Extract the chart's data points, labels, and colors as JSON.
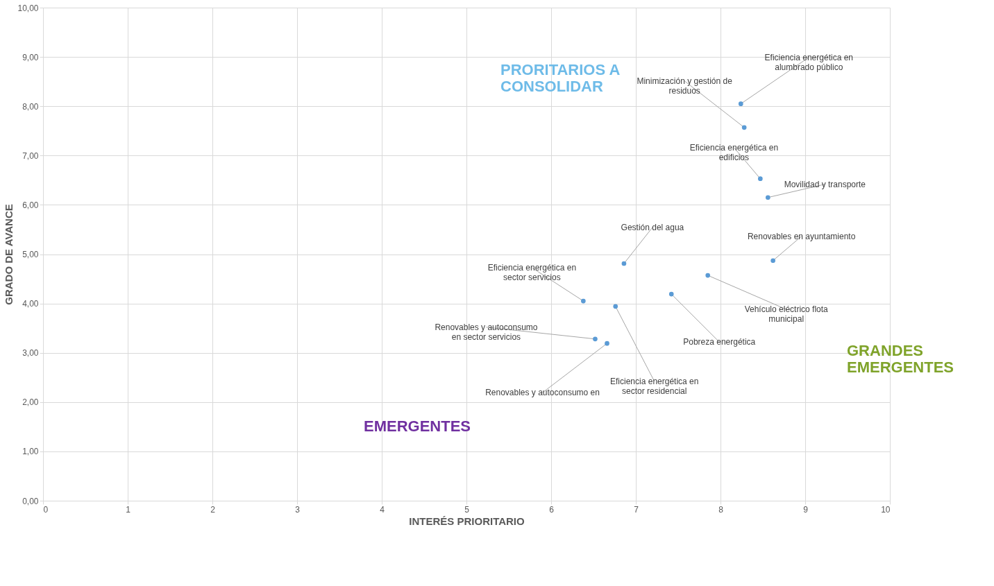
{
  "chart_data": {
    "type": "scatter",
    "xlabel": "INTERÉS PRIORITARIO",
    "ylabel": "GRADO DE AVANCE",
    "xlim": [
      0,
      10
    ],
    "ylim": [
      0,
      10
    ],
    "xticks": [
      0,
      1,
      2,
      3,
      4,
      5,
      6,
      7,
      8,
      9,
      10
    ],
    "yticks": [
      {
        "value": 0,
        "label": "0,00"
      },
      {
        "value": 1,
        "label": "1,00"
      },
      {
        "value": 2,
        "label": "2,00"
      },
      {
        "value": 3,
        "label": "3,00"
      },
      {
        "value": 4,
        "label": "4,00"
      },
      {
        "value": 5,
        "label": "5,00"
      },
      {
        "value": 6,
        "label": "6,00"
      },
      {
        "value": 7,
        "label": "7,00"
      },
      {
        "value": 8,
        "label": "8,00"
      },
      {
        "value": 9,
        "label": "9,00"
      },
      {
        "value": 10,
        "label": "10,00"
      }
    ],
    "grid": true,
    "legend": false,
    "marker": "circle",
    "series": [
      {
        "name": "Eficiencia energética en alumbrado público",
        "color": "#5b9bd5",
        "x": [
          8.24
        ],
        "values": [
          8.05
        ]
      },
      {
        "name": "Minimización y gestión de residuos",
        "color": "#5b9bd5",
        "x": [
          8.28
        ],
        "values": [
          7.57
        ]
      },
      {
        "name": "Eficiencia energética en edificios",
        "color": "#5b9bd5",
        "x": [
          8.47
        ],
        "values": [
          6.53
        ]
      },
      {
        "name": "Movilidad y transporte",
        "color": "#5b9bd5",
        "x": [
          8.56
        ],
        "values": [
          6.15
        ]
      },
      {
        "name": "Gestión del agua",
        "color": "#5b9bd5",
        "x": [
          6.86
        ],
        "values": [
          4.81
        ]
      },
      {
        "name": "Renovables en ayuntamiento",
        "color": "#5b9bd5",
        "x": [
          8.62
        ],
        "values": [
          4.87
        ]
      },
      {
        "name": "Vehículo eléctrico flota municipal",
        "color": "#5b9bd5",
        "x": [
          7.85
        ],
        "values": [
          4.57
        ]
      },
      {
        "name": "Pobreza energética",
        "color": "#5b9bd5",
        "x": [
          7.42
        ],
        "values": [
          4.19
        ]
      },
      {
        "name": "Eficiencia energética en sector servicios",
        "color": "#5b9bd5",
        "x": [
          6.38
        ],
        "values": [
          4.05
        ]
      },
      {
        "name": "Eficiencia energética en sector residencial",
        "color": "#5b9bd5",
        "x": [
          6.76
        ],
        "values": [
          3.94
        ]
      },
      {
        "name": "Renovables y autoconsumo en sector servicios",
        "color": "#5b9bd5",
        "x": [
          6.52
        ],
        "values": [
          3.28
        ]
      },
      {
        "name": "Renovables y autoconsumo en",
        "color": "#5b9bd5",
        "x": [
          6.66
        ],
        "values": [
          3.19
        ]
      }
    ],
    "annotations": [
      "PRORITARIOS A CONSOLIDAR",
      "GRANDES EMERGENTES",
      "EMERGENTES"
    ]
  }
}
